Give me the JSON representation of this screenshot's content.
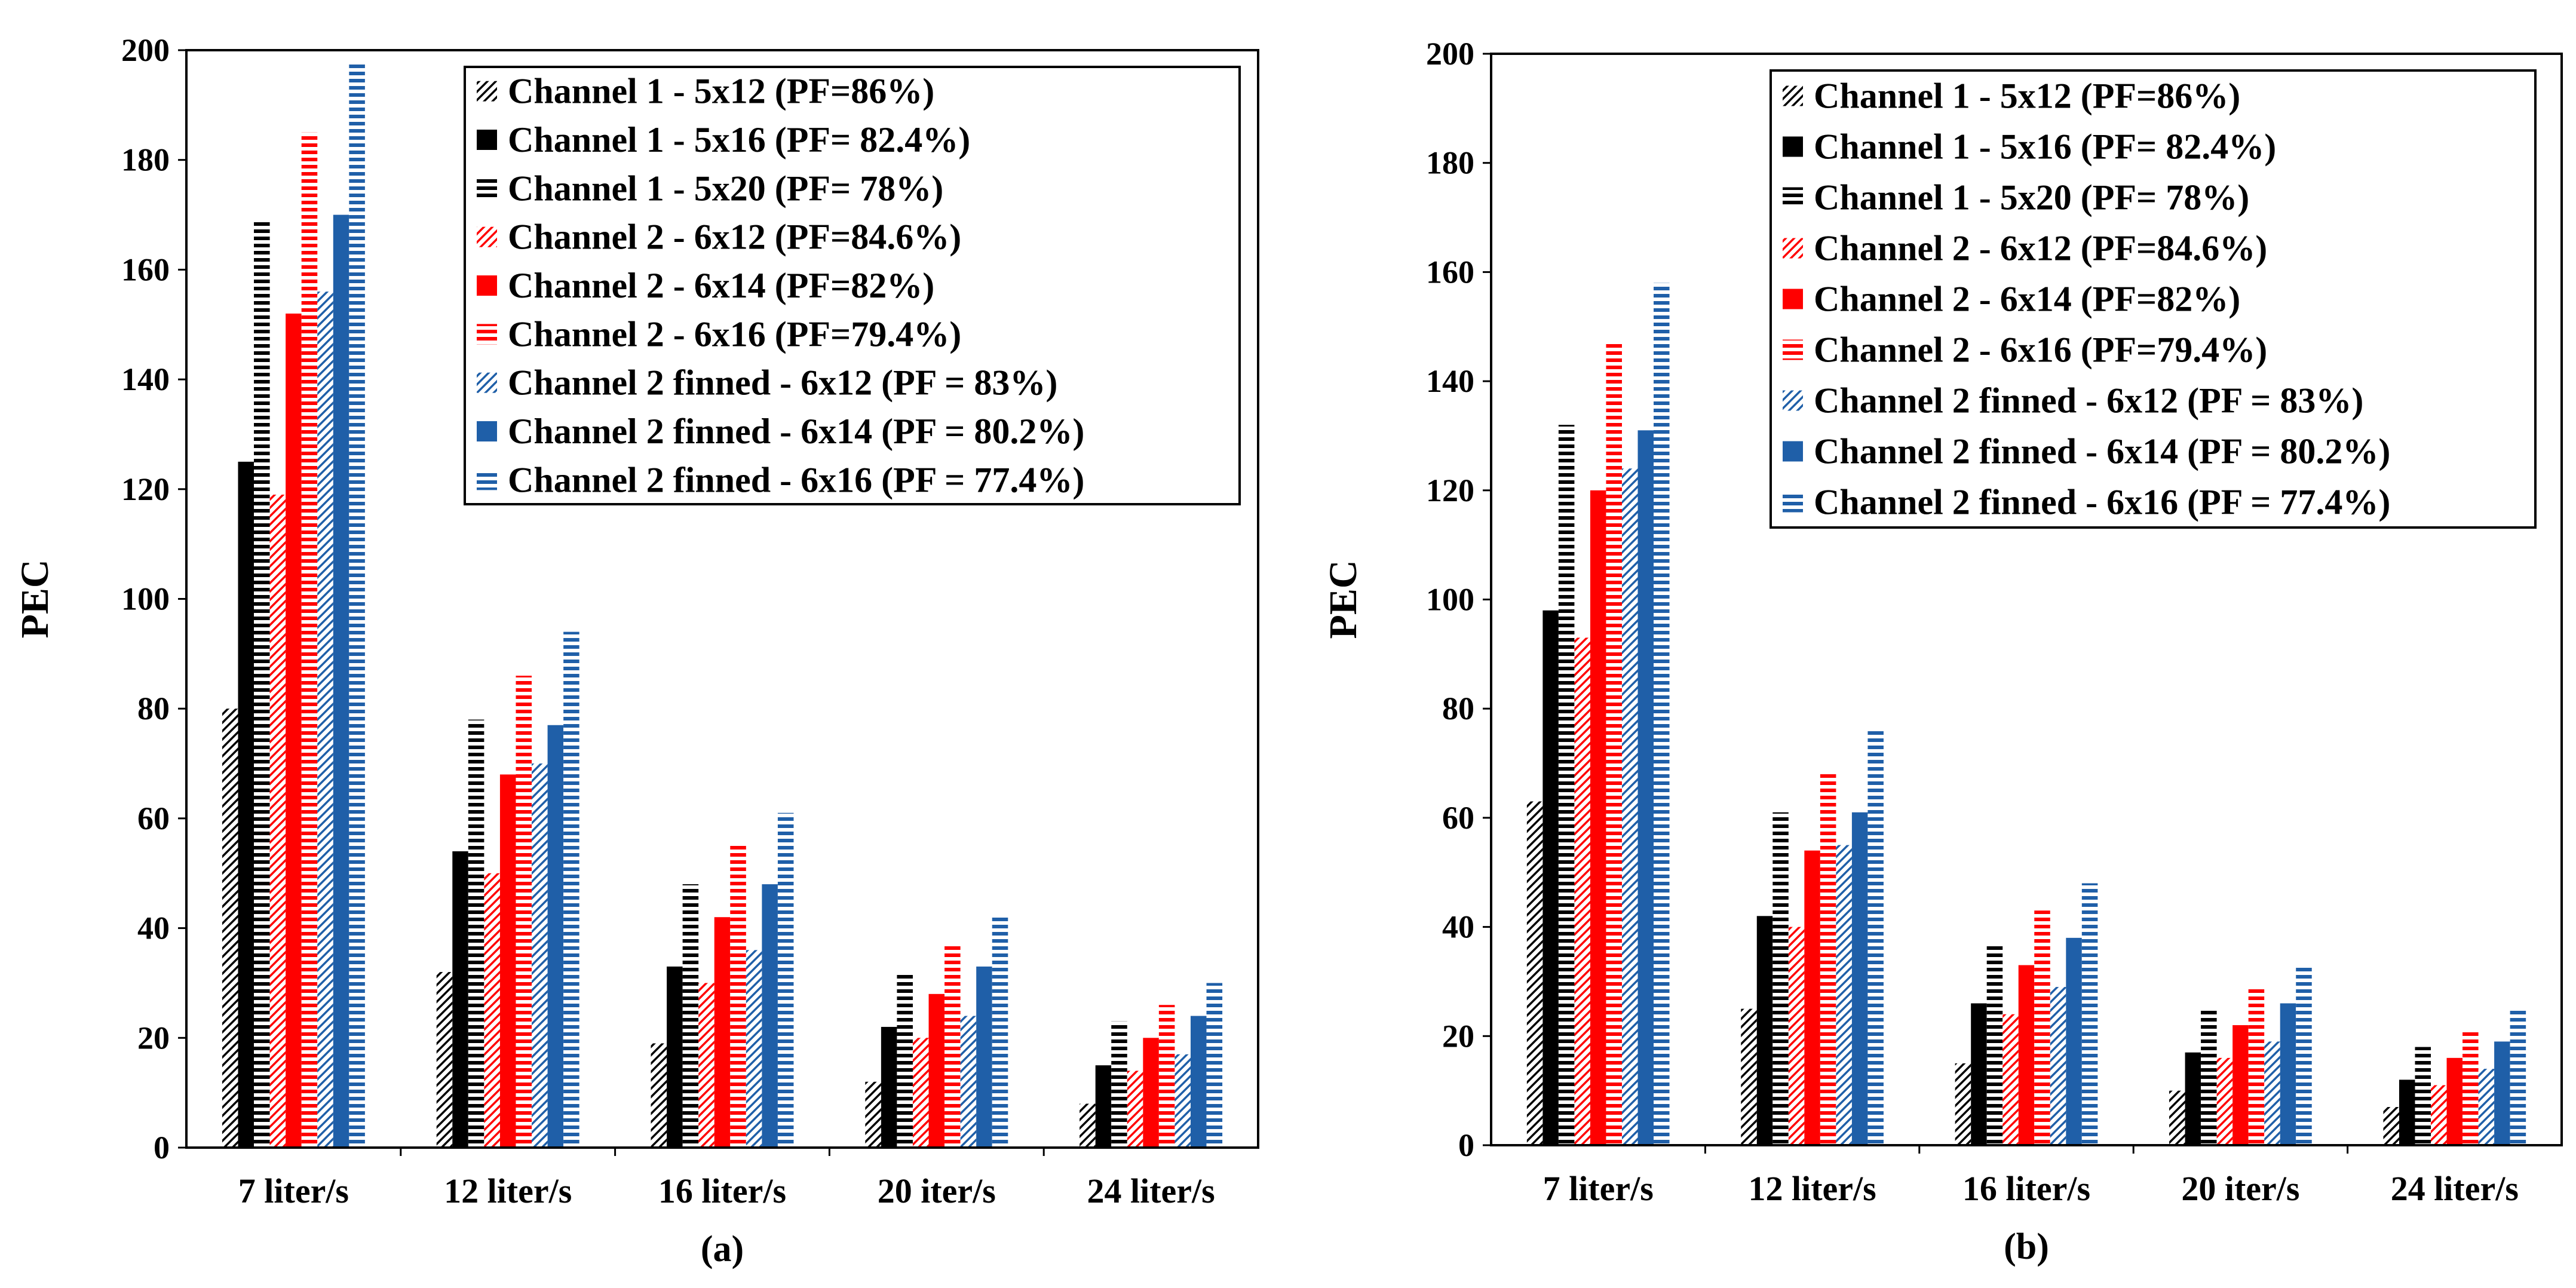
{
  "chart_data": [
    {
      "type": "bar",
      "panel_label": "(a)",
      "ylabel": "PEC",
      "ylim": [
        0,
        200
      ],
      "yticks": [
        0,
        20,
        40,
        60,
        80,
        100,
        120,
        140,
        160,
        180,
        200
      ],
      "categories": [
        "7 liter/s",
        "12 liter/s",
        "16 liter/s",
        "20 iter/s",
        "24 liter/s"
      ],
      "legend_position": "top-right",
      "series": [
        {
          "name": "Channel 1 - 5x12 (PF=86%)",
          "color": "#000000",
          "pattern": "diagonal",
          "values": [
            80,
            32,
            19,
            12,
            8
          ]
        },
        {
          "name": "Channel 1 - 5x16 (PF= 82.4%)",
          "color": "#000000",
          "pattern": "solid",
          "values": [
            125,
            54,
            33,
            22,
            15
          ]
        },
        {
          "name": "Channel 1 - 5x20 (PF= 78%)",
          "color": "#000000",
          "pattern": "horizontal",
          "values": [
            169,
            78,
            48,
            32,
            23
          ]
        },
        {
          "name": "Channel 2 - 6x12 (PF=84.6%)",
          "color": "#ff0000",
          "pattern": "diagonal",
          "values": [
            119,
            50,
            30,
            20,
            14
          ]
        },
        {
          "name": "Channel 2 - 6x14 (PF=82%)",
          "color": "#ff0000",
          "pattern": "solid",
          "values": [
            152,
            68,
            42,
            28,
            20
          ]
        },
        {
          "name": "Channel 2 - 6x16 (PF=79.4%)",
          "color": "#ff0000",
          "pattern": "horizontal",
          "values": [
            185,
            86,
            55,
            37,
            26
          ]
        },
        {
          "name": "Channel 2 finned - 6x12 (PF = 83%)",
          "color": "#1f5fa8",
          "pattern": "diagonal",
          "values": [
            156,
            70,
            36,
            24,
            17
          ]
        },
        {
          "name": "Channel 2 finned - 6x14 (PF = 80.2%)",
          "color": "#1f5fa8",
          "pattern": "solid",
          "values": [
            170,
            77,
            48,
            33,
            24
          ]
        },
        {
          "name": "Channel 2 finned - 6x16  (PF = 77.4%)",
          "color": "#1f5fa8",
          "pattern": "horizontal",
          "values": [
            198,
            94,
            61,
            42,
            30
          ]
        }
      ]
    },
    {
      "type": "bar",
      "panel_label": "(b)",
      "ylabel": "PEC",
      "ylim": [
        0,
        200
      ],
      "yticks": [
        0,
        20,
        40,
        60,
        80,
        100,
        120,
        140,
        160,
        180,
        200
      ],
      "categories": [
        "7 liter/s",
        "12 liter/s",
        "16 liter/s",
        "20 iter/s",
        "24 liter/s"
      ],
      "legend_position": "top-right",
      "series": [
        {
          "name": "Channel 1 - 5x12 (PF=86%)",
          "color": "#000000",
          "pattern": "diagonal",
          "values": [
            63,
            25,
            15,
            10,
            7
          ]
        },
        {
          "name": "Channel 1 - 5x16 (PF= 82.4%)",
          "color": "#000000",
          "pattern": "solid",
          "values": [
            98,
            42,
            26,
            17,
            12
          ]
        },
        {
          "name": "Channel 1 - 5x20 (PF= 78%)",
          "color": "#000000",
          "pattern": "horizontal",
          "values": [
            132,
            61,
            37,
            25,
            18
          ]
        },
        {
          "name": "Channel 2 - 6x12 (PF=84.6%)",
          "color": "#ff0000",
          "pattern": "diagonal",
          "values": [
            93,
            40,
            24,
            16,
            11
          ]
        },
        {
          "name": "Channel 2 - 6x14 (PF=82%)",
          "color": "#ff0000",
          "pattern": "solid",
          "values": [
            120,
            54,
            33,
            22,
            16
          ]
        },
        {
          "name": "Channel 2 - 6x16 (PF=79.4%)",
          "color": "#ff0000",
          "pattern": "horizontal",
          "values": [
            147,
            68,
            43,
            29,
            21
          ]
        },
        {
          "name": "Channel 2 finned - 6x12 (PF = 83%)",
          "color": "#1f5fa8",
          "pattern": "diagonal",
          "values": [
            124,
            55,
            29,
            19,
            14
          ]
        },
        {
          "name": "Channel 2 finned - 6x14 (PF = 80.2%)",
          "color": "#1f5fa8",
          "pattern": "solid",
          "values": [
            131,
            61,
            38,
            26,
            19
          ]
        },
        {
          "name": "Channel 2 finned - 6x16  (PF = 77.4%)",
          "color": "#1f5fa8",
          "pattern": "horizontal",
          "values": [
            158,
            76,
            48,
            33,
            25
          ]
        }
      ]
    }
  ]
}
